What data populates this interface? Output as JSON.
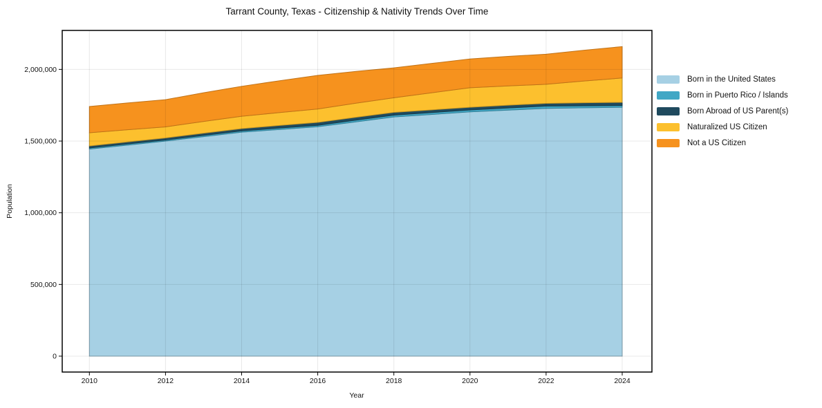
{
  "chart_data": {
    "type": "area",
    "stacked": true,
    "title": "Tarrant County, Texas - Citizenship & Nativity Trends Over Time",
    "xlabel": "Year",
    "ylabel": "Population",
    "grid": true,
    "legend_position": "right",
    "x": [
      2010,
      2011,
      2012,
      2013,
      2014,
      2015,
      2016,
      2017,
      2018,
      2019,
      2020,
      2021,
      2022,
      2023,
      2024
    ],
    "xtick_labels": [
      "2010",
      "2012",
      "2014",
      "2016",
      "2018",
      "2020",
      "2022",
      "2024"
    ],
    "xtick_values": [
      2010,
      2012,
      2014,
      2016,
      2018,
      2020,
      2022,
      2024
    ],
    "ytick_labels": [
      "0",
      "500,000",
      "1,000,000",
      "1,500,000",
      "2,000,000"
    ],
    "ytick_values": [
      0,
      500000,
      1000000,
      1500000,
      2000000
    ],
    "xlim": [
      2010,
      2024
    ],
    "ylim": [
      0,
      2270000
    ],
    "series": [
      {
        "name": "Born in the United States",
        "color": "#a6d0e4",
        "values": [
          1444000,
          1472000,
          1500000,
          1531000,
          1562000,
          1581000,
          1600000,
          1634000,
          1668000,
          1686000,
          1704000,
          1716000,
          1728000,
          1732000,
          1736000
        ]
      },
      {
        "name": "Born in Puerto Rico / Islands",
        "color": "#41a7c5",
        "values": [
          8000,
          8000,
          8000,
          9000,
          9000,
          10000,
          10000,
          12000,
          13000,
          13000,
          13000,
          15000,
          16000,
          14000,
          12000
        ]
      },
      {
        "name": "Born Abroad of US Parent(s)",
        "color": "#1f4a5e",
        "values": [
          14000,
          14000,
          14000,
          15000,
          16000,
          18000,
          20000,
          20000,
          19000,
          19000,
          19000,
          19000,
          19000,
          21000,
          22000
        ]
      },
      {
        "name": "Naturalized US Citizen",
        "color": "#fcc02e",
        "values": [
          92000,
          85000,
          77000,
          82000,
          86000,
          90000,
          94000,
          98000,
          102000,
          119000,
          136000,
          135000,
          133000,
          152000,
          170000
        ]
      },
      {
        "name": "Not a US Citizen",
        "color": "#f6921e",
        "values": [
          183000,
          187000,
          190000,
          200000,
          209000,
          222000,
          234000,
          222000,
          209000,
          205000,
          201000,
          206000,
          210000,
          215000,
          219000
        ]
      }
    ]
  }
}
